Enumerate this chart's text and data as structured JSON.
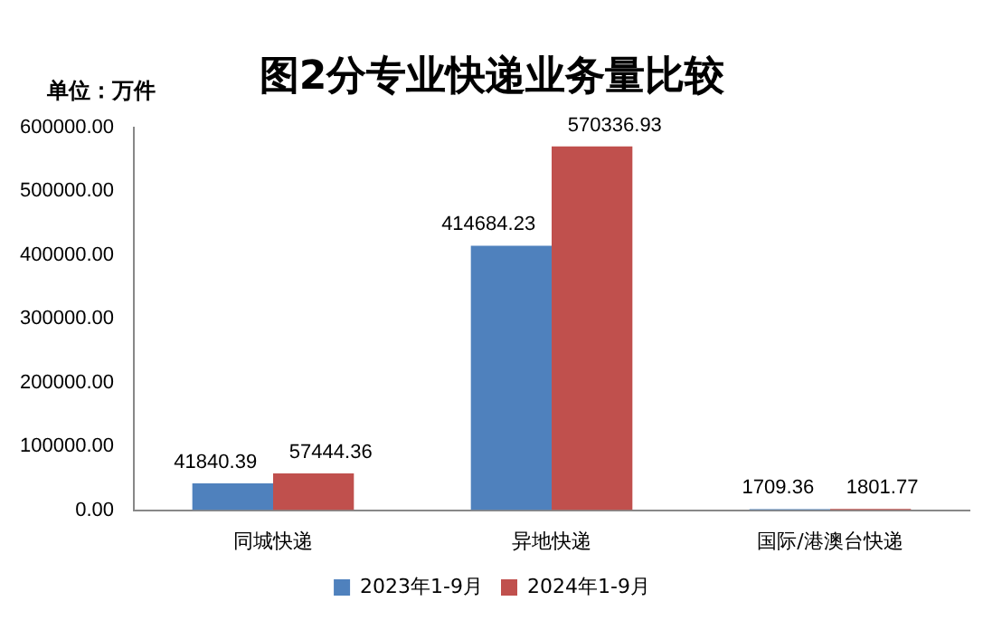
{
  "chart_data": {
    "type": "bar",
    "title": "图2分专业快递业务量比较",
    "ylabel": "单位：万件",
    "categories": [
      "同城快递",
      "异地快递",
      "国际/港澳台快递"
    ],
    "series": [
      {
        "name": "2023年1-9月",
        "color": "#4f81bd",
        "values": [
          41840.39,
          414684.23,
          1709.36
        ]
      },
      {
        "name": "2024年1-9月",
        "color": "#c0504d",
        "values": [
          57444.36,
          570336.93,
          1801.77
        ]
      }
    ],
    "ylim": [
      0,
      600000
    ],
    "yticks": [
      {
        "value": 0,
        "label": "0.00"
      },
      {
        "value": 100000,
        "label": "100000.00"
      },
      {
        "value": 200000,
        "label": "200000.00"
      },
      {
        "value": 300000,
        "label": "300000.00"
      },
      {
        "value": 400000,
        "label": "400000.00"
      },
      {
        "value": 500000,
        "label": "500000.00"
      },
      {
        "value": 600000,
        "label": "600000.00"
      }
    ],
    "data_labels": true,
    "grid": false,
    "legend": "bottom"
  }
}
